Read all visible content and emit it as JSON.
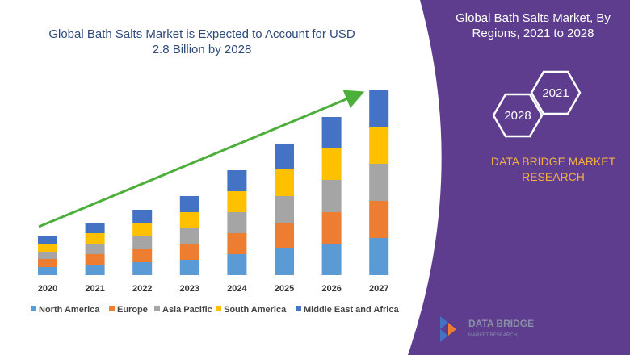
{
  "chart_data": {
    "type": "bar",
    "stacked": true,
    "title": "Global Bath Salts Market is Expected to Account for USD 2.8 Billion by 2028",
    "categories": [
      "2020",
      "2021",
      "2022",
      "2023",
      "2024",
      "2025",
      "2026",
      "2027"
    ],
    "series": [
      {
        "name": "North America",
        "color": "#5b9bd5",
        "values": [
          10,
          13,
          16,
          19,
          26,
          33,
          39,
          46
        ]
      },
      {
        "name": "Europe",
        "color": "#ed7d31",
        "values": [
          10,
          13,
          16,
          20,
          26,
          32,
          39,
          46
        ]
      },
      {
        "name": "Asia Pacific",
        "color": "#a5a5a5",
        "values": [
          9,
          13,
          16,
          20,
          26,
          33,
          40,
          46
        ]
      },
      {
        "name": "South America",
        "color": "#ffc000",
        "values": [
          10,
          13,
          17,
          19,
          26,
          33,
          39,
          45
        ]
      },
      {
        "name": "Middle East and Africa",
        "color": "#4472c4",
        "values": [
          9,
          13,
          16,
          20,
          26,
          32,
          39,
          46
        ]
      }
    ]
  },
  "side_panel": {
    "title": "Global Bath Salts Market, By Regions, 2021 to 2028",
    "badges": [
      "2021",
      "2028"
    ],
    "brand": "DATA BRIDGE MARKET RESEARCH"
  },
  "logo": {
    "name": "DATA BRIDGE",
    "tagline": "MARKET RESEARCH"
  }
}
